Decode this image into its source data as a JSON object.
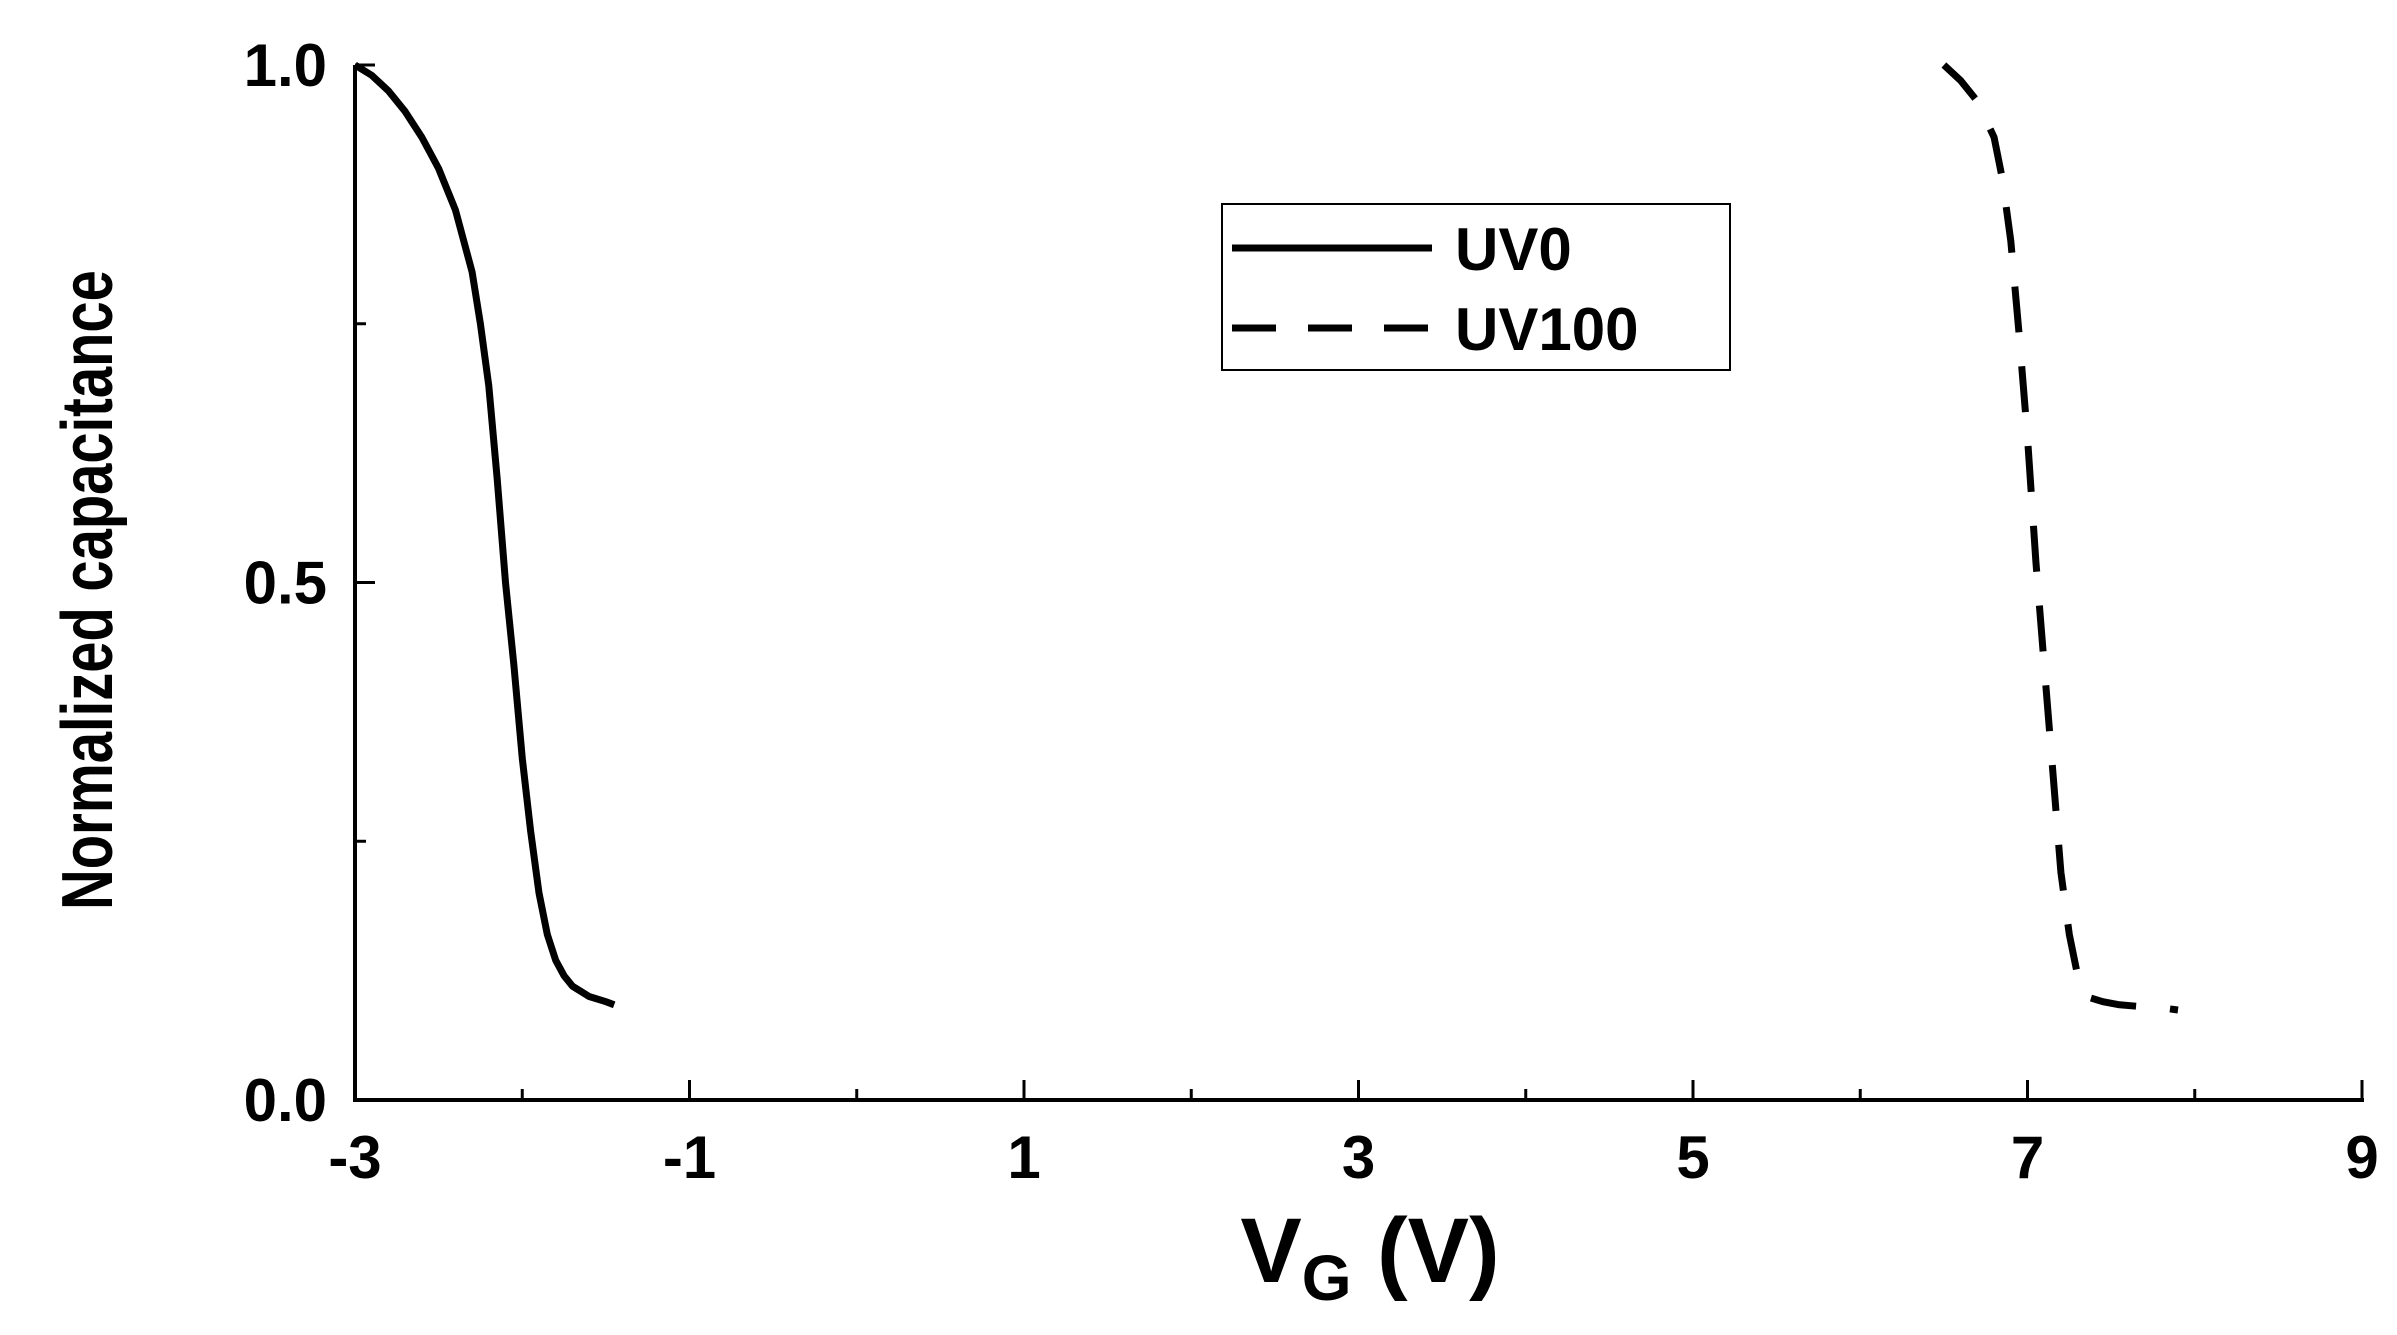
{
  "chart_data": {
    "type": "line",
    "title": "",
    "xlabel_main": "V",
    "xlabel_subscript": "G",
    "xlabel_units": " (V)",
    "ylabel": "Normalized capacitance",
    "xlim": [
      -3,
      9
    ],
    "ylim": [
      0,
      1.0
    ],
    "x_ticks_major": [
      -3,
      -1,
      1,
      3,
      5,
      7,
      9
    ],
    "x_tick_labels": [
      "-3",
      "-1",
      "1",
      "3",
      "5",
      "7",
      "9"
    ],
    "x_ticks_minor": [
      -2,
      0,
      2,
      4,
      6,
      8
    ],
    "y_ticks_major": [
      0.0,
      0.5,
      1.0
    ],
    "y_tick_labels": [
      "0.0",
      "0.5",
      "1.0"
    ],
    "y_ticks_minor": [
      0.25,
      0.75
    ],
    "grid": false,
    "legend_position": "top-center",
    "series": [
      {
        "name": "UV0",
        "line_style": "solid",
        "color": "#000000",
        "x": [
          -3.0,
          -2.9,
          -2.8,
          -2.7,
          -2.6,
          -2.5,
          -2.4,
          -2.3,
          -2.25,
          -2.2,
          -2.15,
          -2.1,
          -2.05,
          -2.0,
          -1.95,
          -1.9,
          -1.85,
          -1.8,
          -1.75,
          -1.7,
          -1.6,
          -1.5,
          -1.45
        ],
        "y": [
          1.0,
          0.99,
          0.975,
          0.955,
          0.93,
          0.9,
          0.86,
          0.8,
          0.75,
          0.69,
          0.6,
          0.5,
          0.42,
          0.33,
          0.26,
          0.2,
          0.16,
          0.135,
          0.12,
          0.11,
          0.1,
          0.095,
          0.092
        ]
      },
      {
        "name": "UV100",
        "line_style": "dashed",
        "color": "#000000",
        "x": [
          6.5,
          6.6,
          6.7,
          6.8,
          6.85,
          6.9,
          6.95,
          7.0,
          7.05,
          7.1,
          7.15,
          7.2,
          7.25,
          7.3,
          7.35,
          7.45,
          7.55,
          7.7,
          7.85,
          7.9
        ],
        "y": [
          1.0,
          0.985,
          0.965,
          0.93,
          0.89,
          0.83,
          0.74,
          0.64,
          0.52,
          0.42,
          0.32,
          0.22,
          0.16,
          0.12,
          0.1,
          0.095,
          0.092,
          0.09,
          0.088,
          0.087
        ]
      }
    ]
  }
}
